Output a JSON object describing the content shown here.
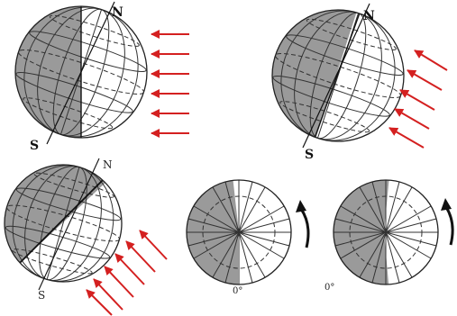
{
  "colors": {
    "night": "#9a9a9a",
    "day": "#ffffff",
    "outline": "#222222",
    "sunray": "#d42020",
    "rotation": "#111111"
  },
  "globes": [
    {
      "id": "globe-1",
      "north_label": "N",
      "south_label": "S"
    },
    {
      "id": "globe-2",
      "north_label": "N",
      "south_label": "S"
    },
    {
      "id": "globe-3",
      "north_label": "N",
      "south_label": "S"
    }
  ],
  "polar_views": [
    {
      "id": "polar-1",
      "meridian_label": "0°"
    },
    {
      "id": "polar-2",
      "meridian_label": "0°"
    }
  ],
  "icons": {
    "sun_rays": "arrow-left-icon",
    "rotation": "curved-arrow-icon"
  }
}
